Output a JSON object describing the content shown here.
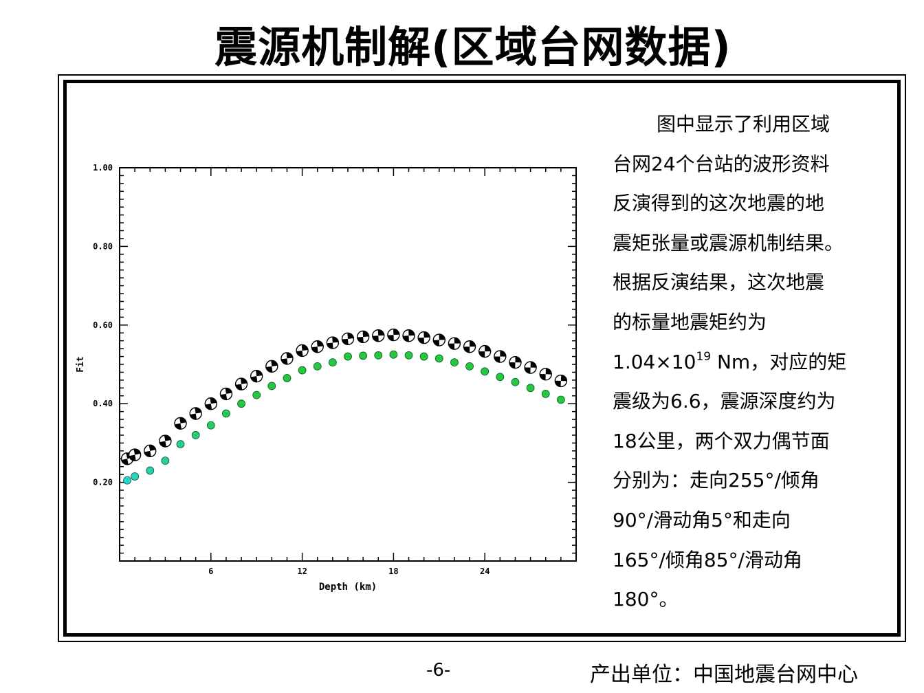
{
  "title": "震源机制解(区域台网数据)",
  "description": {
    "line1": "图中显示了利用区域",
    "line2": "台网24个台站的波形资料",
    "line3": "反演得到的这次地震的地",
    "line4": "震矩张量或震源机制结果。",
    "line5": "根据反演结果，这次地震",
    "line6": "的标量地震矩约为",
    "line7_pre": "1.04×10",
    "line7_sup": "19",
    "line7_post": " Nm，对应的矩",
    "line8": "震级为6.6，震源深度约为",
    "line9": "18公里，两个双力偶节面",
    "line10": "分别为：走向255°/倾角",
    "line11": "90°/滑动角5°和走向",
    "line12": "165°/倾角85°/滑动角",
    "line13": "180°。"
  },
  "footer": {
    "page_number": "-6-",
    "producer": "产出单位：中国地震台网中心"
  },
  "chart_data": {
    "type": "scatter",
    "xlabel": "Depth (km)",
    "ylabel": "Fit",
    "xlim": [
      0,
      30
    ],
    "ylim": [
      0.0,
      1.0
    ],
    "x_ticks": [
      6,
      12,
      18,
      24
    ],
    "x_tick_labels": [
      "6",
      "12",
      "18",
      "24"
    ],
    "y_ticks": [
      0.2,
      0.4,
      0.6,
      0.8,
      1.0
    ],
    "y_tick_labels": [
      "0.20",
      "0.40",
      "0.60",
      "0.80",
      "1.00"
    ],
    "series": [
      {
        "marker": "focal-mechanism-beachball",
        "color": "#000000",
        "x": [
          0.5,
          1,
          2,
          3,
          4,
          5,
          6,
          7,
          8,
          9,
          10,
          11,
          12,
          13,
          14,
          15,
          16,
          17,
          18,
          19,
          20,
          21,
          22,
          23,
          24,
          25,
          26,
          27,
          28,
          29
        ],
        "y": [
          0.26,
          0.27,
          0.28,
          0.305,
          0.35,
          0.375,
          0.4,
          0.425,
          0.45,
          0.47,
          0.495,
          0.515,
          0.535,
          0.545,
          0.555,
          0.565,
          0.57,
          0.573,
          0.575,
          0.573,
          0.568,
          0.562,
          0.553,
          0.545,
          0.533,
          0.52,
          0.505,
          0.492,
          0.475,
          0.458
        ]
      },
      {
        "marker": "dot",
        "color_gradient": [
          "#2ad3d3",
          "#27c840"
        ],
        "x": [
          0.5,
          1,
          2,
          3,
          4,
          5,
          6,
          7,
          8,
          9,
          10,
          11,
          12,
          13,
          14,
          15,
          16,
          17,
          18,
          19,
          20,
          21,
          22,
          23,
          24,
          25,
          26,
          27,
          28,
          29
        ],
        "y": [
          0.205,
          0.215,
          0.23,
          0.255,
          0.297,
          0.32,
          0.345,
          0.375,
          0.4,
          0.422,
          0.445,
          0.465,
          0.485,
          0.495,
          0.505,
          0.52,
          0.522,
          0.523,
          0.525,
          0.523,
          0.52,
          0.515,
          0.505,
          0.495,
          0.482,
          0.468,
          0.455,
          0.44,
          0.425,
          0.41
        ]
      }
    ]
  }
}
